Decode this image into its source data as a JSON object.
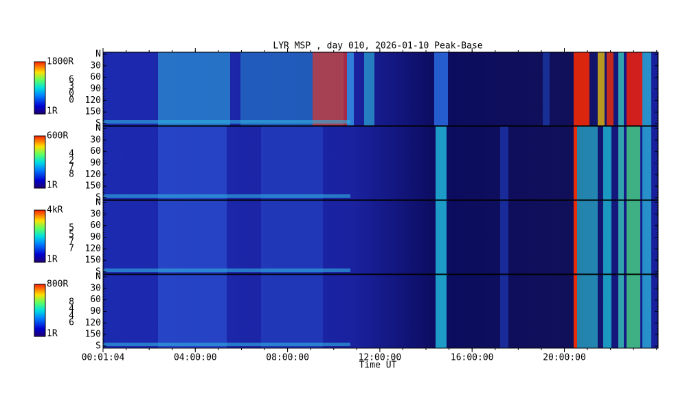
{
  "title": "LYR MSP , day 010, 2026-01-10 Peak-Base",
  "panels": [
    {
      "scale_max": "1800R",
      "scale_min": "1R",
      "wavelength_digits": [
        "6",
        "3",
        "0",
        "0"
      ]
    },
    {
      "scale_max": "600R",
      "scale_min": "1R",
      "wavelength_digits": [
        "4",
        "2",
        "7",
        "8"
      ]
    },
    {
      "scale_max": "4kR",
      "scale_min": "1R",
      "wavelength_digits": [
        "5",
        "5",
        "7",
        "7"
      ]
    },
    {
      "scale_max": "800R",
      "scale_min": "1R",
      "wavelength_digits": [
        "8",
        "4",
        "4",
        "6"
      ]
    }
  ],
  "y_axis_labels": [
    "N",
    "30",
    "60",
    "90",
    "120",
    "150",
    "S"
  ],
  "x_axis": {
    "ticks": [
      "00:01:04",
      "04:00:00",
      "08:00:00",
      "12:00:00",
      "16:00:00",
      "20:00:00"
    ],
    "label": "Time UT"
  }
}
